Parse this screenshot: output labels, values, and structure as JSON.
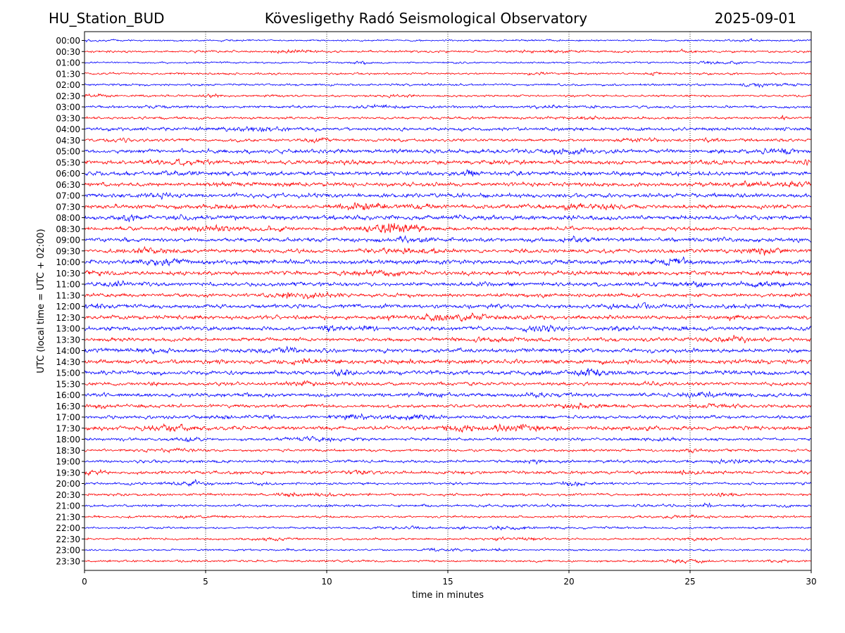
{
  "header": {
    "station": "HU_Station_BUD",
    "observatory": "Kövesligethy Radó Seismological Observatory",
    "date": "2025-09-01"
  },
  "chart_data": {
    "type": "line",
    "title": "Kövesligethy Radó Seismological Observatory",
    "xlabel": "time in minutes",
    "ylabel": "UTC (local time = UTC + 02:00)",
    "xlim": [
      0,
      30
    ],
    "x_ticks": [
      0,
      5,
      10,
      15,
      20,
      25,
      30
    ],
    "grid": "vertical dotted lines at x ticks",
    "rows": [
      "00:00",
      "00:30",
      "01:00",
      "01:30",
      "02:00",
      "02:30",
      "03:00",
      "03:30",
      "04:00",
      "04:30",
      "05:00",
      "05:30",
      "06:00",
      "06:30",
      "07:00",
      "07:30",
      "08:00",
      "08:30",
      "09:00",
      "09:30",
      "10:00",
      "10:30",
      "11:00",
      "11:30",
      "12:00",
      "12:30",
      "13:00",
      "13:30",
      "14:00",
      "14:30",
      "15:00",
      "15:30",
      "16:00",
      "16:30",
      "17:00",
      "17:30",
      "18:00",
      "18:30",
      "19:00",
      "19:30",
      "20:00",
      "20:30",
      "21:00",
      "21:30",
      "22:00",
      "22:30",
      "23:00",
      "23:30"
    ],
    "colors": [
      "#0000ff",
      "#ff0000"
    ],
    "amplitude": [
      0.25,
      0.3,
      0.25,
      0.3,
      0.3,
      0.3,
      0.35,
      0.35,
      0.45,
      0.4,
      0.55,
      0.55,
      0.6,
      0.55,
      0.55,
      0.55,
      0.6,
      0.5,
      0.55,
      0.55,
      0.6,
      0.55,
      0.55,
      0.5,
      0.55,
      0.55,
      0.55,
      0.5,
      0.55,
      0.6,
      0.55,
      0.45,
      0.5,
      0.45,
      0.45,
      0.55,
      0.4,
      0.35,
      0.4,
      0.45,
      0.35,
      0.35,
      0.35,
      0.3,
      0.3,
      0.3,
      0.25,
      0.3
    ]
  }
}
